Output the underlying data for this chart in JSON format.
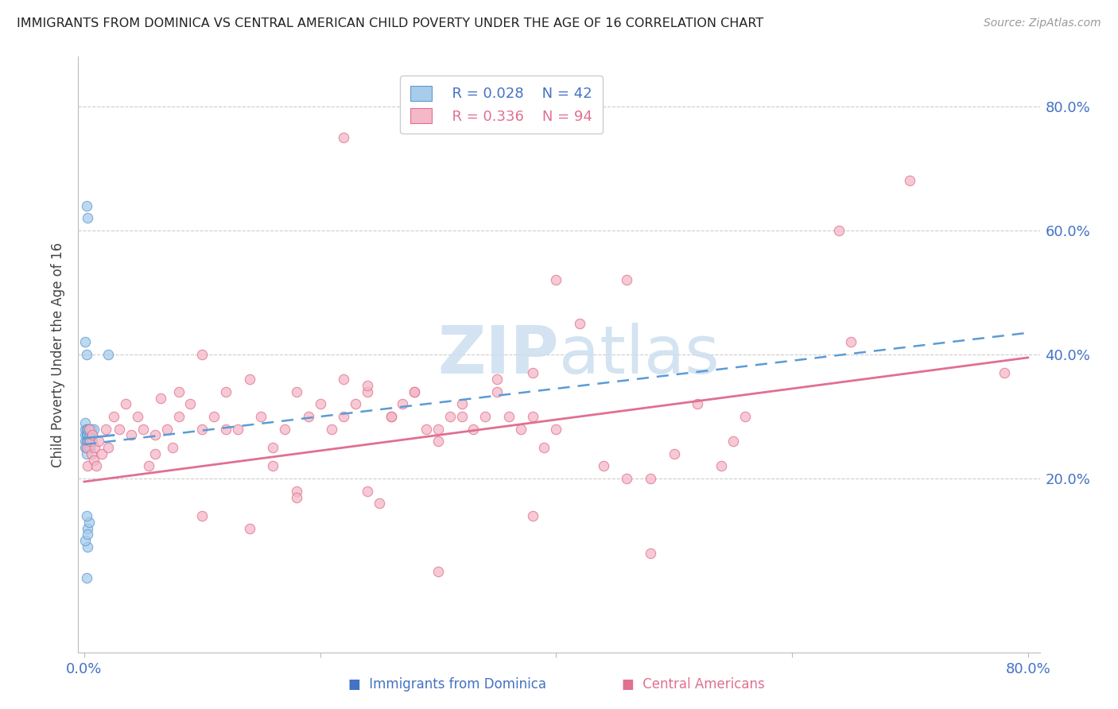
{
  "title": "IMMIGRANTS FROM DOMINICA VS CENTRAL AMERICAN CHILD POVERTY UNDER THE AGE OF 16 CORRELATION CHART",
  "source": "Source: ZipAtlas.com",
  "ylabel": "Child Poverty Under the Age of 16",
  "legend1_R": "R = 0.028",
  "legend1_N": "N = 42",
  "legend2_R": "R = 0.336",
  "legend2_N": "N = 94",
  "color_blue_fill": "#a8ccea",
  "color_blue_edge": "#5b9bd5",
  "color_pink_fill": "#f4b8c8",
  "color_pink_edge": "#e07090",
  "color_line_blue": "#5b9bd5",
  "color_line_pink": "#e07090",
  "color_text_blue": "#4472c4",
  "color_title": "#222222",
  "watermark_color": "#cfe0f0",
  "xlim": [
    0.0,
    0.8
  ],
  "ylim": [
    -0.08,
    0.88
  ],
  "blue_line_x0": 0.0,
  "blue_line_x1": 0.025,
  "blue_line_y0": 0.265,
  "blue_line_y1": 0.27,
  "pink_line_x0": 0.0,
  "pink_line_x1": 0.8,
  "pink_line_y0": 0.195,
  "pink_line_y1": 0.395,
  "dashed_line_x0": 0.0,
  "dashed_line_x1": 0.8,
  "dashed_line_y0": 0.255,
  "dashed_line_y1": 0.435,
  "blue_scatter_x": [
    0.001,
    0.001,
    0.001,
    0.001,
    0.001,
    0.002,
    0.002,
    0.002,
    0.002,
    0.002,
    0.003,
    0.003,
    0.003,
    0.003,
    0.003,
    0.003,
    0.004,
    0.004,
    0.004,
    0.004,
    0.005,
    0.005,
    0.005,
    0.005,
    0.006,
    0.006,
    0.006,
    0.007,
    0.007,
    0.008,
    0.002,
    0.003,
    0.001,
    0.002,
    0.003,
    0.004,
    0.002,
    0.003,
    0.02,
    0.002,
    0.001,
    0.003
  ],
  "blue_scatter_y": [
    0.26,
    0.27,
    0.28,
    0.25,
    0.29,
    0.27,
    0.26,
    0.28,
    0.25,
    0.24,
    0.27,
    0.26,
    0.28,
    0.25,
    0.27,
    0.26,
    0.27,
    0.25,
    0.28,
    0.26,
    0.27,
    0.26,
    0.25,
    0.28,
    0.27,
    0.26,
    0.28,
    0.27,
    0.26,
    0.28,
    0.64,
    0.62,
    0.42,
    0.4,
    0.12,
    0.13,
    0.14,
    0.09,
    0.4,
    0.04,
    0.1,
    0.11
  ],
  "pink_scatter_x": [
    0.002,
    0.003,
    0.004,
    0.005,
    0.006,
    0.007,
    0.008,
    0.009,
    0.01,
    0.012,
    0.015,
    0.018,
    0.02,
    0.025,
    0.03,
    0.035,
    0.04,
    0.045,
    0.05,
    0.055,
    0.06,
    0.065,
    0.07,
    0.075,
    0.08,
    0.09,
    0.1,
    0.11,
    0.12,
    0.13,
    0.14,
    0.15,
    0.16,
    0.17,
    0.18,
    0.19,
    0.2,
    0.21,
    0.22,
    0.23,
    0.24,
    0.25,
    0.26,
    0.27,
    0.28,
    0.29,
    0.3,
    0.31,
    0.32,
    0.33,
    0.34,
    0.35,
    0.36,
    0.37,
    0.38,
    0.39,
    0.4,
    0.42,
    0.44,
    0.46,
    0.48,
    0.5,
    0.52,
    0.54,
    0.56,
    0.3,
    0.22,
    0.18,
    0.38,
    0.35,
    0.12,
    0.08,
    0.16,
    0.24,
    0.32,
    0.4,
    0.1,
    0.26,
    0.48,
    0.65,
    0.7,
    0.46,
    0.14,
    0.18,
    0.28,
    0.1,
    0.06,
    0.55,
    0.64,
    0.22,
    0.38,
    0.3,
    0.78,
    0.24
  ],
  "pink_scatter_y": [
    0.25,
    0.22,
    0.28,
    0.26,
    0.24,
    0.27,
    0.23,
    0.25,
    0.22,
    0.26,
    0.24,
    0.28,
    0.25,
    0.3,
    0.28,
    0.32,
    0.27,
    0.3,
    0.28,
    0.22,
    0.24,
    0.33,
    0.28,
    0.25,
    0.3,
    0.32,
    0.28,
    0.3,
    0.34,
    0.28,
    0.36,
    0.3,
    0.22,
    0.28,
    0.34,
    0.3,
    0.32,
    0.28,
    0.3,
    0.32,
    0.18,
    0.16,
    0.3,
    0.32,
    0.34,
    0.28,
    0.26,
    0.3,
    0.32,
    0.28,
    0.3,
    0.34,
    0.3,
    0.28,
    0.3,
    0.25,
    0.28,
    0.45,
    0.22,
    0.2,
    0.08,
    0.24,
    0.32,
    0.22,
    0.3,
    0.05,
    0.36,
    0.18,
    0.14,
    0.36,
    0.28,
    0.34,
    0.25,
    0.34,
    0.3,
    0.52,
    0.4,
    0.3,
    0.2,
    0.42,
    0.68,
    0.52,
    0.12,
    0.17,
    0.34,
    0.14,
    0.27,
    0.26,
    0.6,
    0.75,
    0.37,
    0.28,
    0.37,
    0.35
  ]
}
